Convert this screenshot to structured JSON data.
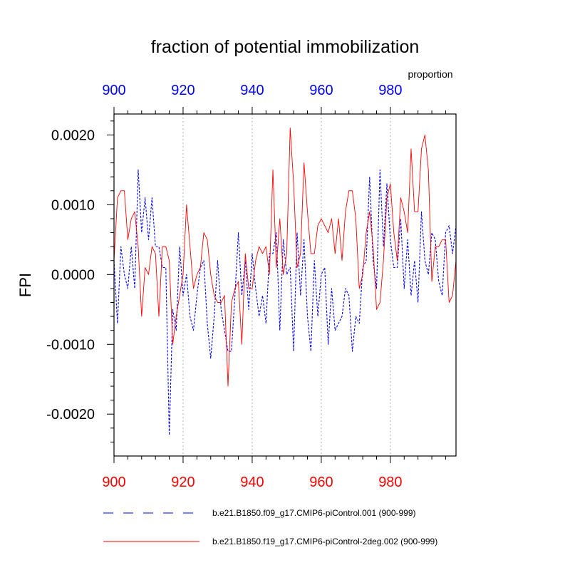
{
  "chart_data": {
    "type": "line",
    "title": "fraction of potential immobilization",
    "ylabel": "FPI",
    "units_label": "proportion",
    "xlim": [
      900,
      999
    ],
    "ylim": [
      -0.0026,
      0.0023
    ],
    "x_ticks": [
      900,
      920,
      940,
      960,
      980
    ],
    "x_tick_labels": [
      "900",
      "920",
      "940",
      "960",
      "980"
    ],
    "y_ticks": [
      0.002,
      0.001,
      0.0,
      -0.001,
      -0.002
    ],
    "y_tick_labels": [
      "0.0020",
      "0.0010",
      "0.0000",
      "-0.0010",
      "-0.0020"
    ],
    "grid": "vertical-dotted",
    "colors": {
      "bottom_axis": "#ff0000",
      "top_axis": "#0000ff",
      "series1": "#0000ff",
      "series2": "#ff0000",
      "grid": "#b0b0b0"
    },
    "series": [
      {
        "name": "b.e21.B1850.f09_g17.CMIP6-piControl.001 (900-999)",
        "style": "dashed",
        "x_start": 900,
        "values": [
          0.0002,
          -0.0007,
          0.0004,
          0.0,
          -0.0002,
          0.0004,
          -0.0002,
          0.0015,
          0.0006,
          0.0011,
          0.0005,
          0.0011,
          0.0004,
          0.0004,
          0.0001,
          0.0001,
          -0.0023,
          -0.0005,
          -0.0008,
          0.0004,
          -0.0003,
          0.0,
          -0.0006,
          -0.0008,
          -0.0003,
          0.0001,
          0.0002,
          -0.0007,
          -0.0012,
          -0.0006,
          0.0002,
          -0.0005,
          -0.0008,
          -0.0011,
          -0.0011,
          -0.0003,
          0.0006,
          -0.0003,
          0.0002,
          -0.0005,
          0.0003,
          -0.0002,
          -0.0006,
          -0.0003,
          -0.0007,
          0.0003,
          0.0003,
          0.0006,
          -0.0008,
          0.0005,
          0.0,
          0.0001,
          -0.0011,
          0.0006,
          -0.0003,
          0.0005,
          -0.0006,
          -0.0011,
          0.0002,
          -0.0006,
          0.0,
          0.0001,
          -0.001,
          -0.0002,
          -0.0008,
          -0.0007,
          -0.0006,
          -0.0002,
          -0.0003,
          -0.0011,
          -0.0006,
          -0.0007,
          0.0001,
          0.0002,
          0.0014,
          0.0002,
          -0.0002,
          0.0015,
          0.0004,
          0.0013,
          0.0005,
          0.0001,
          0.0001,
          0.0008,
          -0.0002,
          0.0005,
          -0.0003,
          0.0002,
          -0.0004,
          0.0009,
          0.0002,
          0.0,
          0.0006,
          0.0005,
          -0.0001,
          -0.0003,
          0.0006,
          0.0007,
          0.0003,
          0.0007
        ]
      },
      {
        "name": "b.e21.B1850.f19_g17.CMIP6-piControl-2deg.002 (900-999)",
        "style": "solid",
        "x_start": 900,
        "values": [
          0.0002,
          0.0011,
          0.0012,
          0.0012,
          0.0005,
          0.0008,
          0.0009,
          0.0004,
          -0.0006,
          0.0001,
          0.0,
          0.0004,
          0.0003,
          -0.0006,
          0.0004,
          0.0004,
          0.0002,
          -0.001,
          -0.0006,
          -0.0003,
          0.0,
          0.001,
          0.0004,
          -0.0002,
          0.0,
          0.0001,
          0.0006,
          0.0005,
          0.0,
          -0.0003,
          -0.0004,
          -0.0004,
          -0.0003,
          -0.0016,
          -0.0004,
          -0.0002,
          -0.0001,
          -0.001,
          0.0003,
          -0.0002,
          -0.0002,
          0.0002,
          0.0004,
          0.0003,
          0.0004,
          0.0,
          0.0015,
          0.0001,
          0.0008,
          0.0,
          0.0003,
          0.0021,
          0.0013,
          0.0001,
          0.0003,
          0.0016,
          0.0009,
          0.0003,
          0.0003,
          0.0007,
          0.0008,
          0.0007,
          0.0006,
          0.0008,
          0.0003,
          0.0008,
          0.0002,
          0.0009,
          0.0012,
          0.0012,
          0.0008,
          -0.0002,
          0.0,
          0.0006,
          0.0009,
          0.0004,
          -0.0005,
          -0.0004,
          0.0002,
          0.0011,
          0.0013,
          0.0006,
          0.0002,
          0.0011,
          0.0009,
          0.0006,
          0.0018,
          0.0009,
          0.0009,
          0.0018,
          0.002,
          0.0015,
          -0.0001,
          0.0004,
          0.0004,
          0.0005,
          0.0005,
          -0.0004,
          -0.0003,
          0.0002
        ]
      }
    ]
  }
}
